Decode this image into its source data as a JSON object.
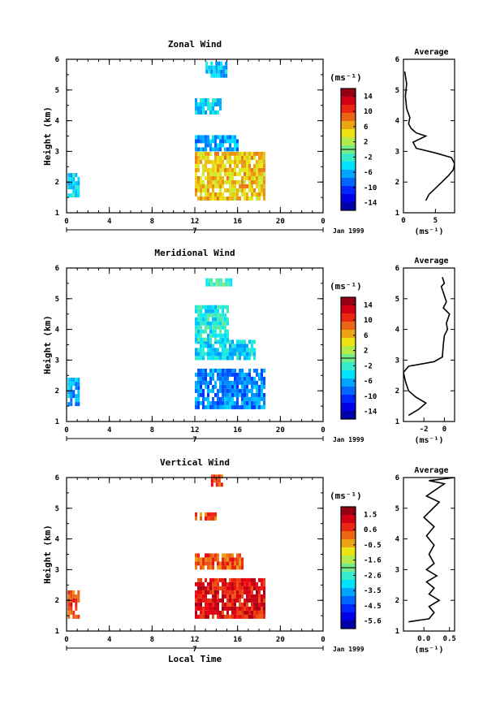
{
  "chart_data": [
    {
      "type": "heatmap",
      "title": "Zonal Wind",
      "ylabel": "Height (km)",
      "xlim": [
        0,
        24
      ],
      "ylim": [
        1,
        6
      ],
      "xticks": [
        "0",
        "4",
        "8",
        "12",
        "16",
        "20",
        "0"
      ],
      "yticks": [
        "1",
        "2",
        "3",
        "4",
        "5",
        "6"
      ],
      "day_label": "7",
      "date_label": "Jan 1999",
      "colorbar": {
        "unit": "(ms⁻¹)",
        "range": [
          -15,
          15
        ],
        "labels": [
          "14",
          "10",
          "6",
          "2",
          "-2",
          "-6",
          "-10",
          "-14"
        ]
      },
      "observation_blocks": [
        {
          "t_start": 0.1,
          "t_end": 1.2,
          "h_start": 1.5,
          "h_end": 2.2,
          "value": -4
        },
        {
          "t_start": 12.0,
          "t_end": 18.5,
          "h_start": 1.4,
          "h_end": 2.9,
          "value": 5
        },
        {
          "t_start": 12.0,
          "t_end": 16.0,
          "h_start": 3.0,
          "h_end": 3.4,
          "value": -6
        },
        {
          "t_start": 12.0,
          "t_end": 14.5,
          "h_start": 4.2,
          "h_end": 4.6,
          "value": -4
        },
        {
          "t_start": 13.0,
          "t_end": 15.0,
          "h_start": 5.4,
          "h_end": 5.8,
          "value": -5
        }
      ],
      "average_profile": {
        "title": "Average",
        "xlabel": "(ms⁻¹)",
        "xticks": [
          "0",
          "5"
        ],
        "xlim": [
          0,
          8
        ],
        "points": [
          [
            3.5,
            1.4
          ],
          [
            4.0,
            1.6
          ],
          [
            5.0,
            1.8
          ],
          [
            6.0,
            2.0
          ],
          [
            7.0,
            2.2
          ],
          [
            7.8,
            2.4
          ],
          [
            8.0,
            2.6
          ],
          [
            7.5,
            2.8
          ],
          [
            5.0,
            2.95
          ],
          [
            2.0,
            3.1
          ],
          [
            1.5,
            3.3
          ],
          [
            2.5,
            3.4
          ],
          [
            3.5,
            3.5
          ],
          [
            2.0,
            3.6
          ],
          [
            1.2,
            3.75
          ],
          [
            0.8,
            3.9
          ],
          [
            1.0,
            4.1
          ],
          [
            0.5,
            4.4
          ],
          [
            0.3,
            4.8
          ],
          [
            0.5,
            5.2
          ],
          [
            0.2,
            5.6
          ]
        ]
      }
    },
    {
      "type": "heatmap",
      "title": "Meridional Wind",
      "ylabel": "Height (km)",
      "xlim": [
        0,
        24
      ],
      "ylim": [
        1,
        6
      ],
      "xticks": [
        "0",
        "4",
        "8",
        "12",
        "16",
        "20",
        "0"
      ],
      "yticks": [
        "1",
        "2",
        "3",
        "4",
        "5",
        "6"
      ],
      "day_label": "7",
      "date_label": "Jan 1999",
      "colorbar": {
        "unit": "(ms⁻¹)",
        "range": [
          -15,
          15
        ],
        "labels": [
          "14",
          "10",
          "6",
          "2",
          "-2",
          "-6",
          "-10",
          "-14"
        ]
      },
      "observation_blocks": [
        {
          "t_start": 0.1,
          "t_end": 1.2,
          "h_start": 1.5,
          "h_end": 2.4,
          "value": -6
        },
        {
          "t_start": 12.0,
          "t_end": 18.5,
          "h_start": 1.4,
          "h_end": 2.6,
          "value": -7
        },
        {
          "t_start": 12.0,
          "t_end": 17.5,
          "h_start": 3.0,
          "h_end": 3.6,
          "value": -4
        },
        {
          "t_start": 12.0,
          "t_end": 15.0,
          "h_start": 3.6,
          "h_end": 4.7,
          "value": -3
        },
        {
          "t_start": 13.0,
          "t_end": 15.5,
          "h_start": 5.4,
          "h_end": 5.6,
          "value": -2
        }
      ],
      "average_profile": {
        "title": "Average",
        "xlabel": "(ms⁻¹)",
        "xticks": [
          "-2",
          "0"
        ],
        "xlim": [
          -4,
          1
        ],
        "points": [
          [
            -3.5,
            1.2
          ],
          [
            -2.5,
            1.4
          ],
          [
            -1.8,
            1.6
          ],
          [
            -2.8,
            1.8
          ],
          [
            -3.5,
            2.0
          ],
          [
            -3.8,
            2.3
          ],
          [
            -4.0,
            2.6
          ],
          [
            -3.5,
            2.8
          ],
          [
            -1.0,
            2.95
          ],
          [
            -0.2,
            3.1
          ],
          [
            -0.1,
            3.5
          ],
          [
            0.0,
            3.8
          ],
          [
            0.3,
            4.0
          ],
          [
            0.2,
            4.2
          ],
          [
            0.5,
            4.5
          ],
          [
            -0.1,
            4.7
          ],
          [
            0.2,
            4.9
          ],
          [
            -0.3,
            5.4
          ],
          [
            0.0,
            5.5
          ],
          [
            -0.2,
            5.7
          ]
        ]
      }
    },
    {
      "type": "heatmap",
      "title": "Vertical Wind",
      "ylabel": "Height (km)",
      "xlabel": "Local Time",
      "xlim": [
        0,
        24
      ],
      "ylim": [
        1,
        6
      ],
      "xticks": [
        "0",
        "4",
        "8",
        "12",
        "16",
        "20",
        "0"
      ],
      "yticks": [
        "1",
        "2",
        "3",
        "4",
        "5",
        "6"
      ],
      "day_label": "7",
      "date_label": "Jan 1999",
      "colorbar": {
        "unit": "(ms⁻¹)",
        "range": [
          -6,
          2
        ],
        "labels": [
          "1.5",
          "0.6",
          "-0.5",
          "-1.6",
          "-2.6",
          "-3.5",
          "-4.5",
          "-5.6"
        ]
      },
      "observation_blocks": [
        {
          "t_start": 0.1,
          "t_end": 1.2,
          "h_start": 1.4,
          "h_end": 2.2,
          "value": 0.4
        },
        {
          "t_start": 12.0,
          "t_end": 18.5,
          "h_start": 1.4,
          "h_end": 2.6,
          "value": 0.9
        },
        {
          "t_start": 12.0,
          "t_end": 16.5,
          "h_start": 3.0,
          "h_end": 3.5,
          "value": 0.3
        },
        {
          "t_start": 12.0,
          "t_end": 14.0,
          "h_start": 4.6,
          "h_end": 4.8,
          "value": 0.2
        },
        {
          "t_start": 13.5,
          "t_end": 14.5,
          "h_start": 5.7,
          "h_end": 6.0,
          "value": 0.3
        }
      ],
      "average_profile": {
        "title": "Average",
        "xlabel": "(ms⁻¹)",
        "xticks": [
          "0.0",
          "0.5"
        ],
        "xlim": [
          -0.4,
          0.6
        ],
        "points": [
          [
            -0.3,
            1.3
          ],
          [
            0.1,
            1.4
          ],
          [
            0.2,
            1.6
          ],
          [
            0.1,
            1.8
          ],
          [
            0.3,
            2.0
          ],
          [
            0.1,
            2.2
          ],
          [
            0.2,
            2.4
          ],
          [
            0.05,
            2.6
          ],
          [
            0.25,
            2.8
          ],
          [
            0.05,
            3.0
          ],
          [
            0.2,
            3.2
          ],
          [
            0.1,
            3.5
          ],
          [
            0.2,
            3.8
          ],
          [
            0.05,
            4.1
          ],
          [
            0.2,
            4.4
          ],
          [
            0.0,
            4.7
          ],
          [
            0.3,
            5.2
          ],
          [
            0.05,
            5.4
          ],
          [
            0.4,
            5.8
          ],
          [
            0.1,
            5.9
          ],
          [
            0.6,
            6.0
          ]
        ]
      }
    }
  ]
}
